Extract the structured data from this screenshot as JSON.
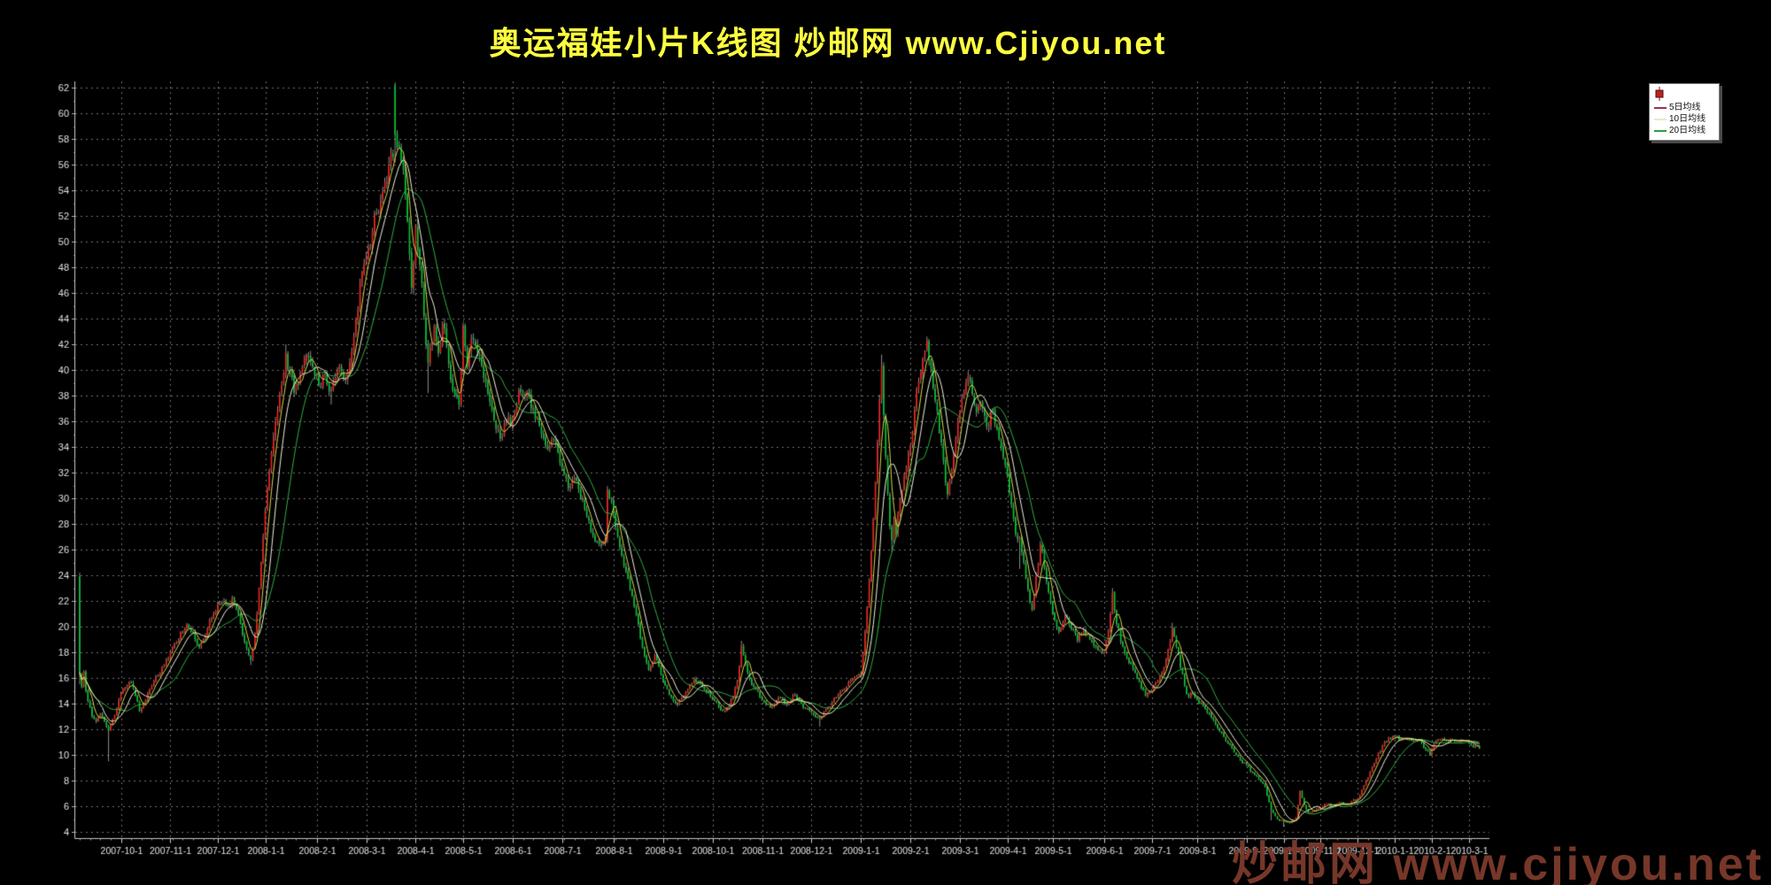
{
  "title": {
    "text": "奥运福娃小片K线图  炒邮网 www.Cjiyou.net",
    "color": "#ffff40"
  },
  "watermark": {
    "text": "炒邮网 www.cjiyou.net",
    "color": "#7d3a2c"
  },
  "legend": {
    "bg": "#ffffff",
    "icon": {
      "name": "candlestick-icon",
      "color": "#bb2222"
    },
    "items": [
      {
        "label": "5日均线",
        "swatch": "#993355",
        "chart_line_color": "#d8d848"
      },
      {
        "label": "10日均线",
        "swatch": "#e9e9c8",
        "chart_line_color": "#f0f0dc"
      },
      {
        "label": "20日均线",
        "swatch": "#2f9e3f",
        "chart_line_color": "#2fae42"
      }
    ]
  },
  "chart_data": {
    "type": "candlestick",
    "title": "奥运福娃小片K线图",
    "ylabel": "",
    "xlabel": "",
    "grid": true,
    "legend_position": "top-right",
    "ylim": [
      3.5,
      62.8
    ],
    "y_ticks": [
      4,
      6,
      8,
      10,
      12,
      14,
      16,
      18,
      20,
      22,
      24,
      26,
      28,
      30,
      32,
      34,
      36,
      38,
      40,
      42,
      44,
      46,
      48,
      50,
      52,
      54,
      56,
      58,
      60,
      62
    ],
    "x_tick_labels": [
      "2007-10-1",
      "2007-11-1",
      "2007-12-1",
      "2008-1-1",
      "2008-2-1",
      "2008-3-1",
      "2008-4-1",
      "2008-5-1",
      "2008-6-1",
      "2008-7-1",
      "2008-8-1",
      "2008-9-1",
      "2008-10-1",
      "2008-11-1",
      "2008-12-1",
      "2009-1-1",
      "2009-2-1",
      "2009-3-1",
      "2009-4-1",
      "2009-5-1",
      "2009-6-1",
      "2009-7-1",
      "2009-8-1",
      "2009-9-1",
      "2009-10-1",
      "2009-11-1",
      "2009-12-1",
      "2010-1-1",
      "2010-2-1",
      "2010-3-1"
    ],
    "x_tick_indices": [
      20,
      44,
      67,
      90,
      115,
      139,
      163,
      186,
      210,
      234,
      259,
      283,
      307,
      331,
      355,
      379,
      403,
      427,
      450,
      472,
      497,
      520,
      542,
      566,
      584,
      602,
      620,
      638,
      656,
      674
    ],
    "candle_count": 680,
    "colors": {
      "up": "#e62222",
      "down": "#00c032",
      "wick": "#c9c9c9",
      "grid": "#6e6e6e",
      "axis": "#c8c8c8",
      "tick_text": "#e2e2e2",
      "bg": "#000000"
    },
    "ma": [
      {
        "period": 5,
        "color": "#d8d848"
      },
      {
        "period": 10,
        "color": "#f0f0dc"
      },
      {
        "period": 20,
        "color": "#2fae42"
      }
    ],
    "series_note": "Daily K-line; values estimated from gridlines. close_keypoints = [candle_index, close]; candles between keypoints follow the interpolated path. overrides give open/high/low wick extremes visible in the image.",
    "close_keypoints": [
      [
        0,
        16.4
      ],
      [
        1,
        15.3
      ],
      [
        2,
        16.5
      ],
      [
        3,
        15.0
      ],
      [
        4,
        14.2
      ],
      [
        6,
        13.0
      ],
      [
        8,
        12.6
      ],
      [
        10,
        13.2
      ],
      [
        12,
        12.6
      ],
      [
        14,
        11.9
      ],
      [
        16,
        12.8
      ],
      [
        18,
        13.6
      ],
      [
        20,
        14.8
      ],
      [
        22,
        15.2
      ],
      [
        25,
        15.6
      ],
      [
        27,
        14.6
      ],
      [
        29,
        13.4
      ],
      [
        31,
        14.0
      ],
      [
        33,
        14.8
      ],
      [
        35,
        15.4
      ],
      [
        38,
        16.2
      ],
      [
        41,
        17.0
      ],
      [
        44,
        18.0
      ],
      [
        47,
        18.8
      ],
      [
        50,
        19.6
      ],
      [
        52,
        20.2
      ],
      [
        54,
        19.6
      ],
      [
        56,
        19.0
      ],
      [
        58,
        18.4
      ],
      [
        60,
        19.0
      ],
      [
        62,
        19.8
      ],
      [
        64,
        20.6
      ],
      [
        66,
        21.2
      ],
      [
        68,
        21.8
      ],
      [
        70,
        22.0
      ],
      [
        72,
        21.6
      ],
      [
        74,
        22.2
      ],
      [
        76,
        21.4
      ],
      [
        78,
        20.2
      ],
      [
        80,
        18.8
      ],
      [
        82,
        17.8
      ],
      [
        83,
        17.4
      ],
      [
        84,
        18.3
      ],
      [
        85,
        19.5
      ],
      [
        86,
        21.0
      ],
      [
        87,
        23.0
      ],
      [
        88,
        25.0
      ],
      [
        89,
        27.0
      ],
      [
        90,
        29.0
      ],
      [
        91,
        30.8
      ],
      [
        92,
        32.2
      ],
      [
        93,
        33.5
      ],
      [
        94,
        34.8
      ],
      [
        95,
        36.0
      ],
      [
        96,
        36.8
      ],
      [
        98,
        38.8
      ],
      [
        100,
        41.3
      ],
      [
        102,
        39.8
      ],
      [
        104,
        38.2
      ],
      [
        106,
        38.8
      ],
      [
        108,
        40.2
      ],
      [
        110,
        41.2
      ],
      [
        112,
        40.6
      ],
      [
        114,
        39.6
      ],
      [
        116,
        38.8
      ],
      [
        118,
        39.6
      ],
      [
        120,
        38.9
      ],
      [
        122,
        38.5
      ],
      [
        124,
        39.4
      ],
      [
        126,
        40.3
      ],
      [
        128,
        39.3
      ],
      [
        130,
        39.9
      ],
      [
        132,
        41.4
      ],
      [
        134,
        44.0
      ],
      [
        136,
        46.8
      ],
      [
        138,
        48.3
      ],
      [
        140,
        49.5
      ],
      [
        142,
        50.8
      ],
      [
        144,
        52.2
      ],
      [
        146,
        53.2
      ],
      [
        148,
        54.6
      ],
      [
        150,
        56.0
      ],
      [
        152,
        56.6
      ],
      [
        153,
        58.3
      ],
      [
        155,
        57.4
      ],
      [
        157,
        55.6
      ],
      [
        159,
        51.6
      ],
      [
        161,
        46.4
      ],
      [
        163,
        51.2
      ],
      [
        165,
        48.2
      ],
      [
        167,
        44.2
      ],
      [
        169,
        40.6
      ],
      [
        172,
        43.4
      ],
      [
        174,
        41.3
      ],
      [
        176,
        43.6
      ],
      [
        178,
        41.8
      ],
      [
        180,
        39.2
      ],
      [
        182,
        38.0
      ],
      [
        184,
        37.3
      ],
      [
        186,
        43.4
      ],
      [
        188,
        40.2
      ],
      [
        190,
        42.4
      ],
      [
        193,
        41.4
      ],
      [
        196,
        39.4
      ],
      [
        199,
        37.5
      ],
      [
        202,
        35.4
      ],
      [
        205,
        34.8
      ],
      [
        207,
        35.9
      ],
      [
        210,
        36.2
      ],
      [
        213,
        38.4
      ],
      [
        215,
        38.0
      ],
      [
        217,
        38.2
      ],
      [
        219,
        37.0
      ],
      [
        221,
        36.2
      ],
      [
        224,
        35.0
      ],
      [
        227,
        33.8
      ],
      [
        230,
        34.6
      ],
      [
        232,
        33.6
      ],
      [
        234,
        32.4
      ],
      [
        237,
        30.8
      ],
      [
        240,
        31.6
      ],
      [
        243,
        30.0
      ],
      [
        246,
        28.6
      ],
      [
        249,
        27.1
      ],
      [
        251,
        26.6
      ],
      [
        253,
        26.3
      ],
      [
        255,
        26.8
      ],
      [
        256,
        30.7
      ],
      [
        259,
        28.8
      ],
      [
        262,
        26.2
      ],
      [
        265,
        24.3
      ],
      [
        268,
        22.4
      ],
      [
        271,
        20.2
      ],
      [
        273,
        18.4
      ],
      [
        276,
        16.6
      ],
      [
        279,
        17.8
      ],
      [
        281,
        16.9
      ],
      [
        283,
        15.7
      ],
      [
        286,
        14.7
      ],
      [
        290,
        13.9
      ],
      [
        294,
        14.9
      ],
      [
        298,
        15.9
      ],
      [
        302,
        15.3
      ],
      [
        307,
        14.3
      ],
      [
        311,
        13.5
      ],
      [
        315,
        13.7
      ],
      [
        317,
        14.5
      ],
      [
        319,
        15.7
      ],
      [
        320,
        16.9
      ],
      [
        321,
        18.5
      ],
      [
        323,
        17.1
      ],
      [
        325,
        15.9
      ],
      [
        327,
        15.3
      ],
      [
        331,
        14.3
      ],
      [
        335,
        13.7
      ],
      [
        339,
        14.5
      ],
      [
        343,
        13.9
      ],
      [
        347,
        14.7
      ],
      [
        351,
        13.7
      ],
      [
        355,
        13.3
      ],
      [
        359,
        12.8
      ],
      [
        363,
        13.7
      ],
      [
        367,
        14.5
      ],
      [
        371,
        15.1
      ],
      [
        375,
        15.9
      ],
      [
        379,
        16.3
      ],
      [
        380,
        17.9
      ],
      [
        381,
        19.6
      ],
      [
        382,
        21.5
      ],
      [
        383,
        23.6
      ],
      [
        384,
        25.9
      ],
      [
        385,
        28.4
      ],
      [
        386,
        31.2
      ],
      [
        387,
        34.3
      ],
      [
        388,
        37.7
      ],
      [
        389,
        40.3
      ],
      [
        390,
        36.5
      ],
      [
        391,
        33.2
      ],
      [
        392,
        30.4
      ],
      [
        393,
        27.8
      ],
      [
        394,
        26.7
      ],
      [
        395,
        28.3
      ],
      [
        396,
        27.2
      ],
      [
        397,
        28.9
      ],
      [
        399,
        30.6
      ],
      [
        401,
        32.4
      ],
      [
        403,
        34.1
      ],
      [
        405,
        36.9
      ],
      [
        407,
        39.1
      ],
      [
        409,
        40.9
      ],
      [
        411,
        42.3
      ],
      [
        413,
        40.1
      ],
      [
        415,
        37.6
      ],
      [
        417,
        35.1
      ],
      [
        419,
        32.9
      ],
      [
        421,
        30.3
      ],
      [
        423,
        32.1
      ],
      [
        425,
        34.6
      ],
      [
        427,
        36.7
      ],
      [
        429,
        38.3
      ],
      [
        431,
        39.5
      ],
      [
        433,
        38.1
      ],
      [
        435,
        36.7
      ],
      [
        437,
        37.4
      ],
      [
        440,
        35.6
      ],
      [
        443,
        36.8
      ],
      [
        445,
        35.4
      ],
      [
        447,
        34.0
      ],
      [
        448,
        33.2
      ],
      [
        450,
        31.8
      ],
      [
        452,
        29.5
      ],
      [
        454,
        27.2
      ],
      [
        456,
        26.9
      ],
      [
        458,
        25.0
      ],
      [
        460,
        22.9
      ],
      [
        462,
        21.3
      ],
      [
        464,
        24.0
      ],
      [
        466,
        26.4
      ],
      [
        468,
        24.6
      ],
      [
        470,
        22.7
      ],
      [
        472,
        21.0
      ],
      [
        475,
        19.6
      ],
      [
        478,
        20.8
      ],
      [
        481,
        19.8
      ],
      [
        484,
        18.9
      ],
      [
        487,
        19.8
      ],
      [
        490,
        19.0
      ],
      [
        493,
        18.4
      ],
      [
        497,
        18.0
      ],
      [
        499,
        19.6
      ],
      [
        501,
        22.6
      ],
      [
        503,
        20.2
      ],
      [
        505,
        18.8
      ],
      [
        507,
        17.9
      ],
      [
        509,
        17.2
      ],
      [
        512,
        16.4
      ],
      [
        515,
        15.2
      ],
      [
        517,
        14.6
      ],
      [
        520,
        15.0
      ],
      [
        523,
        15.8
      ],
      [
        526,
        16.8
      ],
      [
        528,
        18.2
      ],
      [
        530,
        19.9
      ],
      [
        532,
        18.4
      ],
      [
        534,
        16.8
      ],
      [
        536,
        15.4
      ],
      [
        538,
        14.5
      ],
      [
        540,
        14.8
      ],
      [
        542,
        14.3
      ],
      [
        545,
        13.8
      ],
      [
        548,
        13.2
      ],
      [
        551,
        12.4
      ],
      [
        554,
        11.7
      ],
      [
        557,
        10.9
      ],
      [
        560,
        10.2
      ],
      [
        563,
        9.6
      ],
      [
        566,
        9.2
      ],
      [
        569,
        8.6
      ],
      [
        572,
        8.1
      ],
      [
        575,
        7.5
      ],
      [
        578,
        5.7
      ],
      [
        581,
        5.0
      ],
      [
        584,
        4.8
      ],
      [
        587,
        4.7
      ],
      [
        590,
        5.1
      ],
      [
        592,
        7.2
      ],
      [
        594,
        6.1
      ],
      [
        596,
        5.5
      ],
      [
        599,
        5.7
      ],
      [
        602,
        5.9
      ],
      [
        605,
        6.2
      ],
      [
        608,
        6.0
      ],
      [
        611,
        6.3
      ],
      [
        614,
        6.1
      ],
      [
        617,
        6.4
      ],
      [
        620,
        6.6
      ],
      [
        623,
        7.6
      ],
      [
        626,
        8.7
      ],
      [
        629,
        9.7
      ],
      [
        632,
        10.7
      ],
      [
        635,
        11.3
      ],
      [
        638,
        11.4
      ],
      [
        641,
        11.2
      ],
      [
        644,
        11.3
      ],
      [
        647,
        11.1
      ],
      [
        650,
        11.2
      ],
      [
        653,
        10.4
      ],
      [
        655,
        10.0
      ],
      [
        657,
        10.9
      ],
      [
        660,
        11.2
      ],
      [
        663,
        11.1
      ],
      [
        666,
        11.2
      ],
      [
        669,
        11.0
      ],
      [
        672,
        11.1
      ],
      [
        674,
        10.9
      ],
      [
        676,
        10.6
      ],
      [
        678,
        10.7
      ],
      [
        679,
        10.5
      ]
    ],
    "overrides": {
      "0": {
        "o": 23.9,
        "h": 24.2,
        "l": 15.5
      },
      "14": {
        "l": 9.5
      },
      "83": {
        "l": 17.0
      },
      "100": {
        "h": 42.0
      },
      "122": {
        "l": 37.3
      },
      "153": {
        "o": 62.2,
        "h": 62.4
      },
      "169": {
        "l": 38.2
      },
      "321": {
        "h": 18.9
      },
      "359": {
        "l": 12.2
      },
      "389": {
        "h": 41.2
      },
      "394": {
        "l": 25.8
      },
      "411": {
        "h": 42.6
      },
      "456": {
        "l": 24.5
      },
      "501": {
        "h": 23.0
      },
      "530": {
        "h": 20.3
      },
      "578": {
        "l": 4.9
      },
      "584": {
        "l": 4.4
      }
    }
  }
}
